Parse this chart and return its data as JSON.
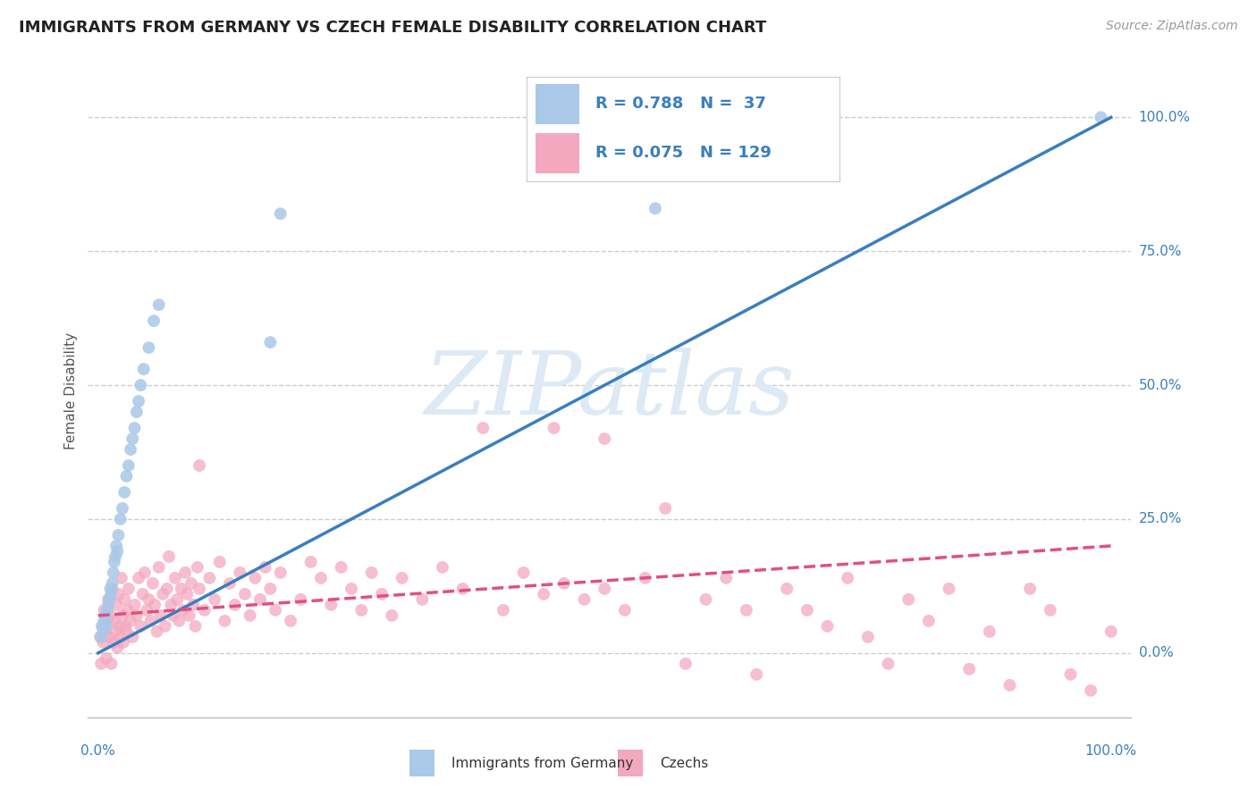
{
  "title": "IMMIGRANTS FROM GERMANY VS CZECH FEMALE DISABILITY CORRELATION CHART",
  "source": "Source: ZipAtlas.com",
  "ylabel": "Female Disability",
  "blue_R": 0.788,
  "blue_N": 37,
  "pink_R": 0.075,
  "pink_N": 129,
  "blue_color": "#aac8e8",
  "blue_line_color": "#3a7ebf",
  "pink_color": "#f4a8c0",
  "pink_line_color": "#e05080",
  "watermark_text": "ZIPatlas",
  "watermark_color": "#ddeaf5",
  "legend_label_blue": "Immigrants from Germany",
  "legend_label_pink": "Czechs",
  "blue_scatter": [
    [
      0.003,
      0.03
    ],
    [
      0.004,
      0.05
    ],
    [
      0.005,
      0.04
    ],
    [
      0.006,
      0.06
    ],
    [
      0.007,
      0.07
    ],
    [
      0.008,
      0.05
    ],
    [
      0.009,
      0.08
    ],
    [
      0.01,
      0.09
    ],
    [
      0.011,
      0.1
    ],
    [
      0.012,
      0.12
    ],
    [
      0.013,
      0.11
    ],
    [
      0.014,
      0.13
    ],
    [
      0.015,
      0.15
    ],
    [
      0.016,
      0.17
    ],
    [
      0.017,
      0.18
    ],
    [
      0.018,
      0.2
    ],
    [
      0.019,
      0.19
    ],
    [
      0.02,
      0.22
    ],
    [
      0.022,
      0.25
    ],
    [
      0.024,
      0.27
    ],
    [
      0.026,
      0.3
    ],
    [
      0.028,
      0.33
    ],
    [
      0.03,
      0.35
    ],
    [
      0.032,
      0.38
    ],
    [
      0.034,
      0.4
    ],
    [
      0.036,
      0.42
    ],
    [
      0.038,
      0.45
    ],
    [
      0.04,
      0.47
    ],
    [
      0.042,
      0.5
    ],
    [
      0.045,
      0.53
    ],
    [
      0.05,
      0.57
    ],
    [
      0.055,
      0.62
    ],
    [
      0.06,
      0.65
    ],
    [
      0.18,
      0.82
    ],
    [
      0.55,
      0.83
    ],
    [
      0.17,
      0.58
    ],
    [
      0.99,
      1.0
    ]
  ],
  "pink_scatter": [
    [
      0.002,
      0.03
    ],
    [
      0.003,
      -0.02
    ],
    [
      0.004,
      0.05
    ],
    [
      0.005,
      0.02
    ],
    [
      0.006,
      0.08
    ],
    [
      0.007,
      0.04
    ],
    [
      0.008,
      -0.01
    ],
    [
      0.009,
      0.06
    ],
    [
      0.01,
      0.1
    ],
    [
      0.011,
      0.03
    ],
    [
      0.012,
      0.07
    ],
    [
      0.013,
      -0.02
    ],
    [
      0.014,
      0.12
    ],
    [
      0.015,
      0.02
    ],
    [
      0.016,
      0.06
    ],
    [
      0.017,
      0.04
    ],
    [
      0.018,
      0.09
    ],
    [
      0.019,
      0.01
    ],
    [
      0.02,
      0.11
    ],
    [
      0.021,
      0.05
    ],
    [
      0.022,
      0.03
    ],
    [
      0.023,
      0.14
    ],
    [
      0.024,
      0.07
    ],
    [
      0.025,
      0.02
    ],
    [
      0.026,
      0.1
    ],
    [
      0.027,
      0.05
    ],
    [
      0.028,
      0.04
    ],
    [
      0.029,
      0.08
    ],
    [
      0.03,
      0.12
    ],
    [
      0.032,
      0.06
    ],
    [
      0.034,
      0.03
    ],
    [
      0.036,
      0.09
    ],
    [
      0.038,
      0.07
    ],
    [
      0.04,
      0.14
    ],
    [
      0.042,
      0.05
    ],
    [
      0.044,
      0.11
    ],
    [
      0.046,
      0.15
    ],
    [
      0.048,
      0.08
    ],
    [
      0.05,
      0.1
    ],
    [
      0.052,
      0.06
    ],
    [
      0.054,
      0.13
    ],
    [
      0.056,
      0.09
    ],
    [
      0.058,
      0.04
    ],
    [
      0.06,
      0.16
    ],
    [
      0.062,
      0.07
    ],
    [
      0.064,
      0.11
    ],
    [
      0.066,
      0.05
    ],
    [
      0.068,
      0.12
    ],
    [
      0.07,
      0.18
    ],
    [
      0.072,
      0.09
    ],
    [
      0.074,
      0.07
    ],
    [
      0.076,
      0.14
    ],
    [
      0.078,
      0.1
    ],
    [
      0.08,
      0.06
    ],
    [
      0.082,
      0.12
    ],
    [
      0.084,
      0.08
    ],
    [
      0.086,
      0.15
    ],
    [
      0.088,
      0.11
    ],
    [
      0.09,
      0.07
    ],
    [
      0.092,
      0.13
    ],
    [
      0.094,
      0.09
    ],
    [
      0.096,
      0.05
    ],
    [
      0.098,
      0.16
    ],
    [
      0.1,
      0.12
    ],
    [
      0.105,
      0.08
    ],
    [
      0.11,
      0.14
    ],
    [
      0.115,
      0.1
    ],
    [
      0.12,
      0.17
    ],
    [
      0.125,
      0.06
    ],
    [
      0.13,
      0.13
    ],
    [
      0.135,
      0.09
    ],
    [
      0.14,
      0.15
    ],
    [
      0.145,
      0.11
    ],
    [
      0.15,
      0.07
    ],
    [
      0.155,
      0.14
    ],
    [
      0.16,
      0.1
    ],
    [
      0.165,
      0.16
    ],
    [
      0.17,
      0.12
    ],
    [
      0.175,
      0.08
    ],
    [
      0.18,
      0.15
    ],
    [
      0.19,
      0.06
    ],
    [
      0.2,
      0.1
    ],
    [
      0.21,
      0.17
    ],
    [
      0.22,
      0.14
    ],
    [
      0.23,
      0.09
    ],
    [
      0.24,
      0.16
    ],
    [
      0.25,
      0.12
    ],
    [
      0.26,
      0.08
    ],
    [
      0.27,
      0.15
    ],
    [
      0.28,
      0.11
    ],
    [
      0.29,
      0.07
    ],
    [
      0.3,
      0.14
    ],
    [
      0.32,
      0.1
    ],
    [
      0.34,
      0.16
    ],
    [
      0.36,
      0.12
    ],
    [
      0.38,
      0.42
    ],
    [
      0.4,
      0.08
    ],
    [
      0.42,
      0.15
    ],
    [
      0.44,
      0.11
    ],
    [
      0.46,
      0.13
    ],
    [
      0.48,
      0.1
    ],
    [
      0.5,
      0.12
    ],
    [
      0.52,
      0.08
    ],
    [
      0.54,
      0.14
    ],
    [
      0.56,
      0.27
    ],
    [
      0.58,
      -0.02
    ],
    [
      0.6,
      0.1
    ],
    [
      0.62,
      0.14
    ],
    [
      0.64,
      0.08
    ],
    [
      0.65,
      -0.04
    ],
    [
      0.68,
      0.12
    ],
    [
      0.7,
      0.08
    ],
    [
      0.72,
      0.05
    ],
    [
      0.74,
      0.14
    ],
    [
      0.76,
      0.03
    ],
    [
      0.78,
      -0.02
    ],
    [
      0.8,
      0.1
    ],
    [
      0.82,
      0.06
    ],
    [
      0.84,
      0.12
    ],
    [
      0.86,
      -0.03
    ],
    [
      0.88,
      0.04
    ],
    [
      0.9,
      -0.06
    ],
    [
      0.92,
      0.12
    ],
    [
      0.94,
      0.08
    ],
    [
      0.96,
      -0.04
    ],
    [
      0.98,
      -0.07
    ],
    [
      1.0,
      0.04
    ],
    [
      0.1,
      0.35
    ],
    [
      0.45,
      0.42
    ],
    [
      0.5,
      0.4
    ]
  ],
  "blue_line_x": [
    0.0,
    1.0
  ],
  "blue_line_y": [
    0.0,
    1.0
  ],
  "pink_line_x": [
    0.0,
    1.0
  ],
  "pink_line_y": [
    0.07,
    0.2
  ],
  "xlim": [
    -0.01,
    1.02
  ],
  "ylim": [
    -0.12,
    1.1
  ],
  "yticks": [
    0.0,
    0.25,
    0.5,
    0.75,
    1.0
  ],
  "ytick_labels": [
    "0.0%",
    "25.0%",
    "50.0%",
    "75.0%",
    "100.0%"
  ],
  "title_fontsize": 13,
  "source_fontsize": 10,
  "ylabel_fontsize": 11
}
